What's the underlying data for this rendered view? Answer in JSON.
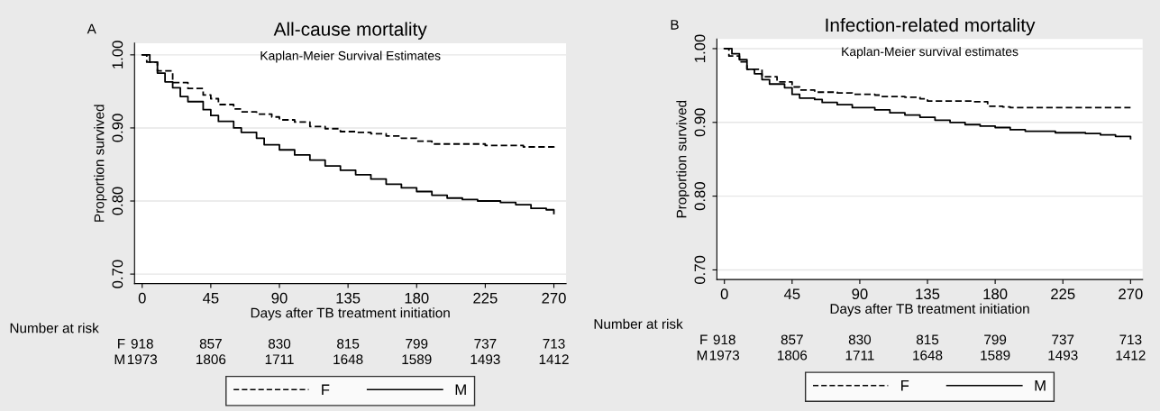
{
  "chart_data": [
    {
      "type": "step",
      "title": "All-cause mortality",
      "xlabel": "Days after TB treatment initiation",
      "ylabel": "Proportion survived",
      "annotations": [
        "A",
        "Kaplan-Meier Survival Estimates",
        "Number at risk",
        "F",
        "918",
        "857",
        "830",
        "815",
        "799",
        "737",
        "713",
        "M",
        "1973",
        "1806",
        "1711",
        "1648",
        "1589",
        "1493",
        "1412"
      ],
      "xlim": [
        -5,
        278
      ],
      "xticks": [
        0,
        45,
        90,
        135,
        180,
        225,
        270
      ],
      "ylim": [
        0.687,
        1.016
      ],
      "yticks": [
        {
          "value": 0.7,
          "label": "0.70"
        },
        {
          "value": 0.8,
          "label": "0.80"
        },
        {
          "value": 0.9,
          "label": "0.90"
        },
        {
          "value": 1.0,
          "label": "1.00"
        }
      ],
      "grid": "y",
      "legend": "bottom",
      "series": [
        {
          "name": "F",
          "color": "#000000",
          "line_style": "dashed",
          "x": [
            0,
            3,
            10,
            20,
            30,
            40,
            45,
            50,
            60,
            65,
            75,
            85,
            90,
            100,
            110,
            120,
            130,
            140,
            150,
            160,
            170,
            180,
            190,
            210,
            225,
            245,
            250,
            270
          ],
          "values": [
            1.0,
            0.99,
            0.978,
            0.962,
            0.954,
            0.945,
            0.94,
            0.932,
            0.926,
            0.922,
            0.919,
            0.915,
            0.911,
            0.908,
            0.902,
            0.899,
            0.895,
            0.894,
            0.892,
            0.889,
            0.886,
            0.882,
            0.878,
            0.878,
            0.876,
            0.876,
            0.874,
            0.872
          ]
        },
        {
          "name": "M",
          "color": "#000000",
          "line_style": "solid",
          "x": [
            0,
            5,
            10,
            15,
            20,
            25,
            30,
            40,
            45,
            50,
            60,
            65,
            75,
            80,
            90,
            100,
            110,
            120,
            130,
            140,
            150,
            160,
            170,
            180,
            190,
            200,
            210,
            220,
            235,
            245,
            255,
            265,
            270
          ],
          "values": [
            1.0,
            0.99,
            0.975,
            0.963,
            0.955,
            0.943,
            0.936,
            0.925,
            0.917,
            0.909,
            0.9,
            0.894,
            0.886,
            0.877,
            0.87,
            0.863,
            0.856,
            0.848,
            0.842,
            0.836,
            0.83,
            0.823,
            0.818,
            0.813,
            0.808,
            0.804,
            0.802,
            0.8,
            0.798,
            0.795,
            0.79,
            0.788,
            0.783
          ]
        }
      ]
    },
    {
      "type": "step",
      "title": "Infection-related mortality",
      "xlabel": "Days after TB treatment initiation",
      "ylabel": "Proportion survived",
      "annotations": [
        "B",
        "Kaplan-Meier survival estimates",
        "Number at risk",
        "F",
        "918",
        "857",
        "830",
        "815",
        "799",
        "737",
        "713",
        "M",
        "1973",
        "1806",
        "1711",
        "1648",
        "1589",
        "1493",
        "1412"
      ],
      "xlim": [
        -5,
        278
      ],
      "xticks": [
        0,
        45,
        90,
        135,
        180,
        225,
        270
      ],
      "ylim": [
        0.687,
        1.013
      ],
      "yticks": [
        {
          "value": 0.7,
          "label": "0.70"
        },
        {
          "value": 0.8,
          "label": "0.80"
        },
        {
          "value": 0.9,
          "label": "0.90"
        },
        {
          "value": 1.0,
          "label": "1.00"
        }
      ],
      "grid": "y",
      "legend": "bottom",
      "series": [
        {
          "name": "F",
          "color": "#000000",
          "line_style": "dashed",
          "x": [
            0,
            3,
            10,
            15,
            25,
            35,
            45,
            50,
            60,
            75,
            85,
            100,
            105,
            120,
            130,
            135,
            165,
            175,
            185,
            190,
            270
          ],
          "values": [
            1.0,
            0.99,
            0.982,
            0.972,
            0.962,
            0.955,
            0.948,
            0.944,
            0.941,
            0.94,
            0.938,
            0.937,
            0.935,
            0.934,
            0.932,
            0.929,
            0.928,
            0.922,
            0.921,
            0.92,
            0.92
          ]
        },
        {
          "name": "M",
          "color": "#000000",
          "line_style": "solid",
          "x": [
            0,
            5,
            10,
            15,
            20,
            25,
            30,
            40,
            45,
            50,
            60,
            65,
            75,
            85,
            100,
            110,
            120,
            130,
            140,
            150,
            160,
            170,
            180,
            190,
            200,
            220,
            240,
            250,
            260,
            270
          ],
          "values": [
            1.0,
            0.993,
            0.985,
            0.972,
            0.966,
            0.958,
            0.952,
            0.947,
            0.938,
            0.933,
            0.931,
            0.927,
            0.924,
            0.92,
            0.917,
            0.913,
            0.91,
            0.907,
            0.903,
            0.9,
            0.897,
            0.895,
            0.893,
            0.89,
            0.888,
            0.886,
            0.885,
            0.883,
            0.881,
            0.878
          ]
        }
      ]
    }
  ]
}
